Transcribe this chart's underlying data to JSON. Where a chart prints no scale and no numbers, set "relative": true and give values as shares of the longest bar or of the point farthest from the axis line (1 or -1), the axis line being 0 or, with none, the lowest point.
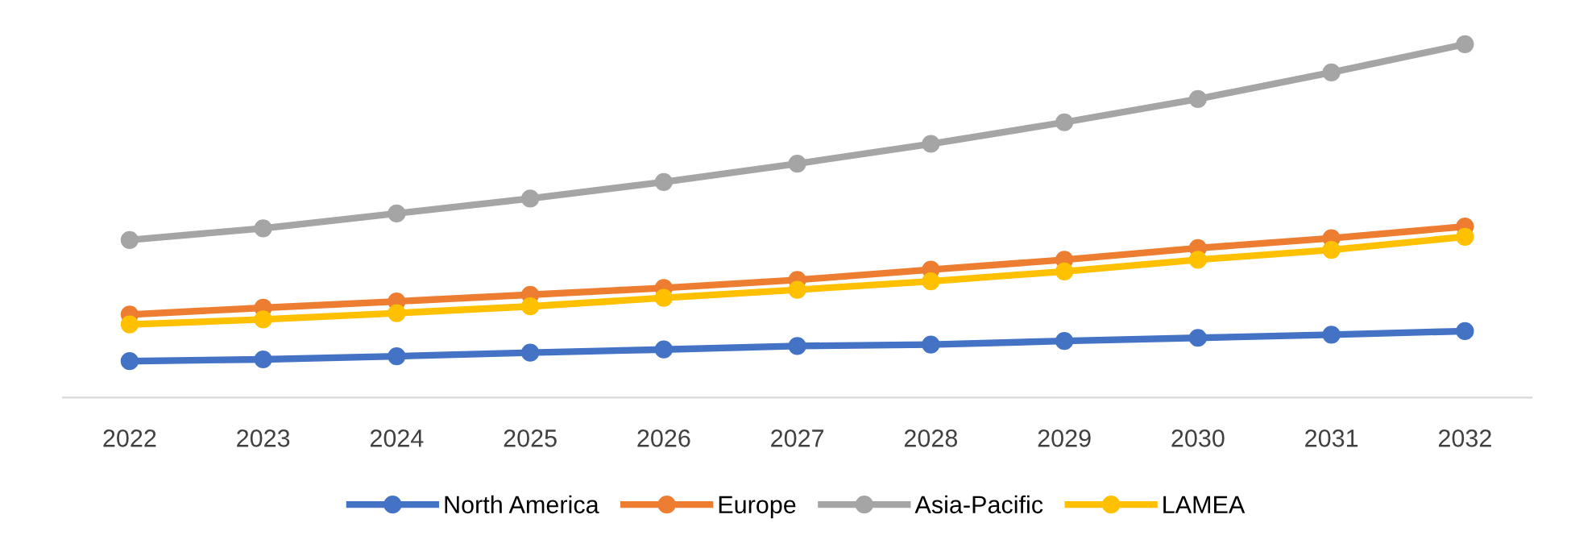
{
  "chart_data": {
    "type": "line",
    "relative": true,
    "legend": "bottom",
    "marker": "circle",
    "line_style": "solid",
    "grid": false,
    "categories": [
      "2022",
      "2023",
      "2024",
      "2025",
      "2026",
      "2027",
      "2028",
      "2029",
      "2030",
      "2031",
      "2032"
    ],
    "series": [
      {
        "name": "North America",
        "color": "#4472c4",
        "values": [
          0.103,
          0.108,
          0.117,
          0.127,
          0.136,
          0.146,
          0.15,
          0.16,
          0.169,
          0.178,
          0.188
        ]
      },
      {
        "name": "Europe",
        "color": "#ed7d31",
        "values": [
          0.235,
          0.254,
          0.272,
          0.291,
          0.31,
          0.333,
          0.362,
          0.39,
          0.423,
          0.451,
          0.484
        ]
      },
      {
        "name": "Asia-Pacific",
        "color": "#a5a5a5",
        "values": [
          0.446,
          0.479,
          0.521,
          0.563,
          0.61,
          0.662,
          0.718,
          0.779,
          0.845,
          0.92,
          1.0
        ]
      },
      {
        "name": "LAMEA",
        "color": "#ffc000",
        "values": [
          0.207,
          0.221,
          0.239,
          0.258,
          0.282,
          0.305,
          0.329,
          0.357,
          0.39,
          0.418,
          0.455
        ]
      }
    ]
  }
}
